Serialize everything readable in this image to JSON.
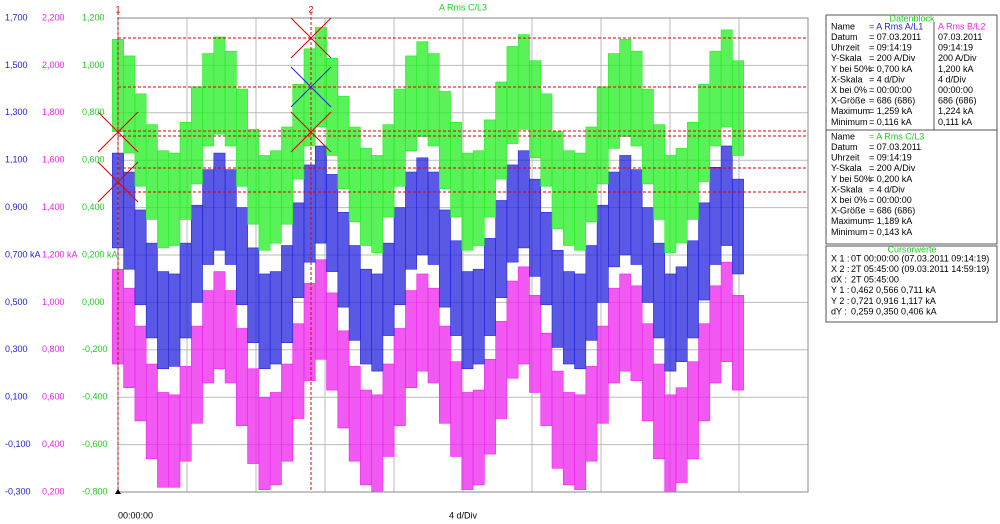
{
  "chart_data": {
    "type": "band",
    "title": "A Rms C/L3",
    "x_start_label": "00:00:00",
    "x_label": "4 d/Div",
    "ylim": [
      -0.3,
      1.7
    ],
    "y2lim": [
      0.2,
      2.2
    ],
    "y3lim": [
      -0.8,
      1.2
    ],
    "yticks": [
      {
        "value": 1.7,
        "label": "1,700"
      },
      {
        "value": 1.5,
        "label": "1,500"
      },
      {
        "value": 1.3,
        "label": "1,300"
      },
      {
        "value": 1.1,
        "label": "1,100"
      },
      {
        "value": 0.9,
        "label": "0,900"
      },
      {
        "value": 0.7,
        "label": "0,700 kA"
      },
      {
        "value": 0.5,
        "label": "0,500"
      },
      {
        "value": 0.3,
        "label": "0,300"
      },
      {
        "value": 0.1,
        "label": "0,100"
      },
      {
        "value": -0.1,
        "label": "-0,100"
      },
      {
        "value": -0.3,
        "label": "-0,300"
      }
    ],
    "y2ticks": [
      {
        "value": 2.2,
        "label": "2,200"
      },
      {
        "value": 2.0,
        "label": "2,000"
      },
      {
        "value": 1.8,
        "label": "1,800"
      },
      {
        "value": 1.6,
        "label": "1,600"
      },
      {
        "value": 1.4,
        "label": "1,400"
      },
      {
        "value": 1.2,
        "label": "1,200 kA"
      },
      {
        "value": 1.0,
        "label": "1,000"
      },
      {
        "value": 0.8,
        "label": "0,800"
      },
      {
        "value": 0.6,
        "label": "0,600"
      },
      {
        "value": 0.4,
        "label": "0,400"
      },
      {
        "value": 0.2,
        "label": "0,200"
      }
    ],
    "y3ticks": [
      {
        "value": 1.2,
        "label": "1,200"
      },
      {
        "value": 1.0,
        "label": "1,000"
      },
      {
        "value": 0.8,
        "label": "0,800"
      },
      {
        "value": 0.6,
        "label": "0,600"
      },
      {
        "value": 0.4,
        "label": "0,400"
      },
      {
        "value": 0.2,
        "label": "0,200 kA"
      },
      {
        "value": 0,
        "label": "0,000"
      },
      {
        "value": -0.2,
        "label": "-0,200"
      },
      {
        "value": -0.4,
        "label": "-0,400"
      },
      {
        "value": -0.6,
        "label": "-0,600"
      },
      {
        "value": -0.8,
        "label": "-0,800"
      }
    ],
    "grid": true,
    "series": [
      {
        "name": "A Rms B/L2",
        "axis": "y2",
        "color": "#ee22ee",
        "high": [
          1.14,
          1.06,
          0.9,
          0.74,
          0.62,
          0.61,
          0.73,
          0.9,
          1.05,
          1.13,
          1.05,
          0.89,
          0.72,
          0.6,
          0.62,
          0.74,
          0.91,
          1.08,
          1.18,
          1.04,
          0.88,
          0.73,
          0.63,
          0.61,
          0.74,
          0.89,
          1.05,
          1.12,
          1.06,
          0.9,
          0.75,
          0.62,
          0.63,
          0.76,
          0.92,
          1.09,
          1.15,
          1.03,
          0.87,
          0.71,
          0.62,
          0.61,
          0.73,
          0.9,
          1.06,
          1.12,
          1.07,
          0.91,
          0.74,
          0.61,
          0.64,
          0.75,
          0.91,
          1.07,
          1.17,
          1.03
        ],
        "low": [
          0.74,
          0.64,
          0.5,
          0.34,
          0.22,
          0.22,
          0.33,
          0.49,
          0.66,
          0.72,
          0.66,
          0.48,
          0.32,
          0.21,
          0.23,
          0.33,
          0.51,
          0.67,
          0.76,
          0.63,
          0.47,
          0.33,
          0.23,
          0.2,
          0.35,
          0.48,
          0.64,
          0.71,
          0.66,
          0.49,
          0.35,
          0.21,
          0.23,
          0.36,
          0.51,
          0.68,
          0.74,
          0.62,
          0.48,
          0.3,
          0.23,
          0.21,
          0.33,
          0.49,
          0.66,
          0.71,
          0.67,
          0.5,
          0.34,
          0.2,
          0.24,
          0.34,
          0.5,
          0.66,
          0.75,
          0.63
        ]
      },
      {
        "name": "A Rms A/L1",
        "axis": "y",
        "color": "#2222dd",
        "high": [
          1.13,
          1.05,
          0.89,
          0.75,
          0.63,
          0.62,
          0.75,
          0.91,
          1.06,
          1.13,
          1.06,
          0.9,
          0.73,
          0.62,
          0.63,
          0.74,
          0.92,
          1.08,
          1.16,
          1.04,
          0.88,
          0.74,
          0.64,
          0.62,
          0.75,
          0.9,
          1.05,
          1.11,
          1.05,
          0.89,
          0.76,
          0.63,
          0.64,
          0.77,
          0.93,
          1.08,
          1.14,
          1.02,
          0.88,
          0.72,
          0.63,
          0.62,
          0.74,
          0.91,
          1.05,
          1.12,
          1.06,
          0.9,
          0.75,
          0.62,
          0.65,
          0.76,
          0.92,
          1.07,
          1.16,
          1.02
        ],
        "low": [
          0.73,
          0.64,
          0.49,
          0.35,
          0.22,
          0.23,
          0.35,
          0.5,
          0.66,
          0.72,
          0.66,
          0.49,
          0.33,
          0.22,
          0.24,
          0.33,
          0.52,
          0.67,
          0.75,
          0.63,
          0.48,
          0.34,
          0.24,
          0.21,
          0.36,
          0.49,
          0.64,
          0.7,
          0.66,
          0.48,
          0.36,
          0.22,
          0.24,
          0.36,
          0.52,
          0.67,
          0.73,
          0.61,
          0.49,
          0.31,
          0.24,
          0.22,
          0.34,
          0.5,
          0.65,
          0.7,
          0.66,
          0.5,
          0.35,
          0.21,
          0.25,
          0.35,
          0.51,
          0.66,
          0.74,
          0.62
        ]
      },
      {
        "name": "A Rms C/L3",
        "axis": "y3",
        "color": "#22ee22",
        "high": [
          1.11,
          1.04,
          0.88,
          0.75,
          0.64,
          0.63,
          0.76,
          0.91,
          1.05,
          1.12,
          1.06,
          0.9,
          0.73,
          0.62,
          0.64,
          0.74,
          0.92,
          1.07,
          1.16,
          1.03,
          0.87,
          0.74,
          0.65,
          0.62,
          0.75,
          0.9,
          1.04,
          1.1,
          1.05,
          0.89,
          0.76,
          0.63,
          0.64,
          0.77,
          0.93,
          1.08,
          1.13,
          1.02,
          0.88,
          0.72,
          0.64,
          0.63,
          0.74,
          0.91,
          1.05,
          1.11,
          1.06,
          0.9,
          0.75,
          0.62,
          0.65,
          0.76,
          0.92,
          1.06,
          1.15,
          1.02
        ],
        "low": [
          0.72,
          0.63,
          0.49,
          0.35,
          0.23,
          0.24,
          0.35,
          0.5,
          0.66,
          0.71,
          0.66,
          0.49,
          0.33,
          0.22,
          0.25,
          0.33,
          0.52,
          0.66,
          0.74,
          0.62,
          0.48,
          0.34,
          0.24,
          0.21,
          0.36,
          0.49,
          0.64,
          0.7,
          0.66,
          0.48,
          0.36,
          0.22,
          0.24,
          0.36,
          0.52,
          0.67,
          0.73,
          0.61,
          0.49,
          0.31,
          0.24,
          0.22,
          0.34,
          0.5,
          0.65,
          0.7,
          0.66,
          0.5,
          0.35,
          0.21,
          0.25,
          0.35,
          0.51,
          0.66,
          0.74,
          0.62
        ]
      }
    ]
  },
  "cursors": [
    "1",
    "2"
  ],
  "datenblock": {
    "title": "Datenblock",
    "labels": [
      "Name",
      "Datum",
      "Uhrzeit",
      "Y-Skala",
      "Y bei 50%",
      "X-Skala",
      "X bei 0%",
      "X-Größe",
      "Maximum",
      "Minimum"
    ],
    "col1": [
      "= A Rms A/L1",
      "= 07.03.2011",
      "= 09:14:19",
      "= 200     A/Div",
      "=   0,700 kA",
      "=   4      d/Div",
      "= 00:00:00",
      "= 686 (686)",
      "=   1,259 kA",
      "=   0,116 kA"
    ],
    "col2": [
      "A Rms B/L2",
      "07.03.2011",
      "09:14:19",
      "200      A/Div",
      "1,200 kA",
      "4      d/Div",
      "00:00:00",
      "686 (686)",
      "1,224 kA",
      "0,111 kA"
    ],
    "labels2": [
      "Name",
      "Datum",
      "Uhrzeit",
      "Y-Skala",
      "Y bei 50%",
      "X-Skala",
      "X bei 0%",
      "X-Größe",
      "Maximum",
      "Minimum"
    ],
    "col3": [
      "= A Rms C/L3",
      "= 07.03.2011",
      "= 09:14:19",
      "= 200     A/Div",
      "=   0,200 kA",
      "=   4      d/Div",
      "= 00:00:00",
      "= 686 (686)",
      "=   1,189 kA",
      "=   0,143 kA"
    ]
  },
  "cursorwerte": {
    "title": "Cursorwerte",
    "rows": [
      [
        "X 1 :",
        "0T 00:00:00 (07.03.2011 09:14:19)"
      ],
      [
        "X 2 :",
        "2T 05:45:00 (09.03.2011 14:59:19)"
      ],
      [
        "dX :",
        "2T 05:45:00"
      ],
      [
        "Y 1 :",
        "0,462   0,566   0,711 kA"
      ],
      [
        "Y 2 :",
        "0,721   0,916   1,117 kA"
      ],
      [
        "dY :",
        "0,259   0,350   0,406 kA"
      ]
    ]
  }
}
